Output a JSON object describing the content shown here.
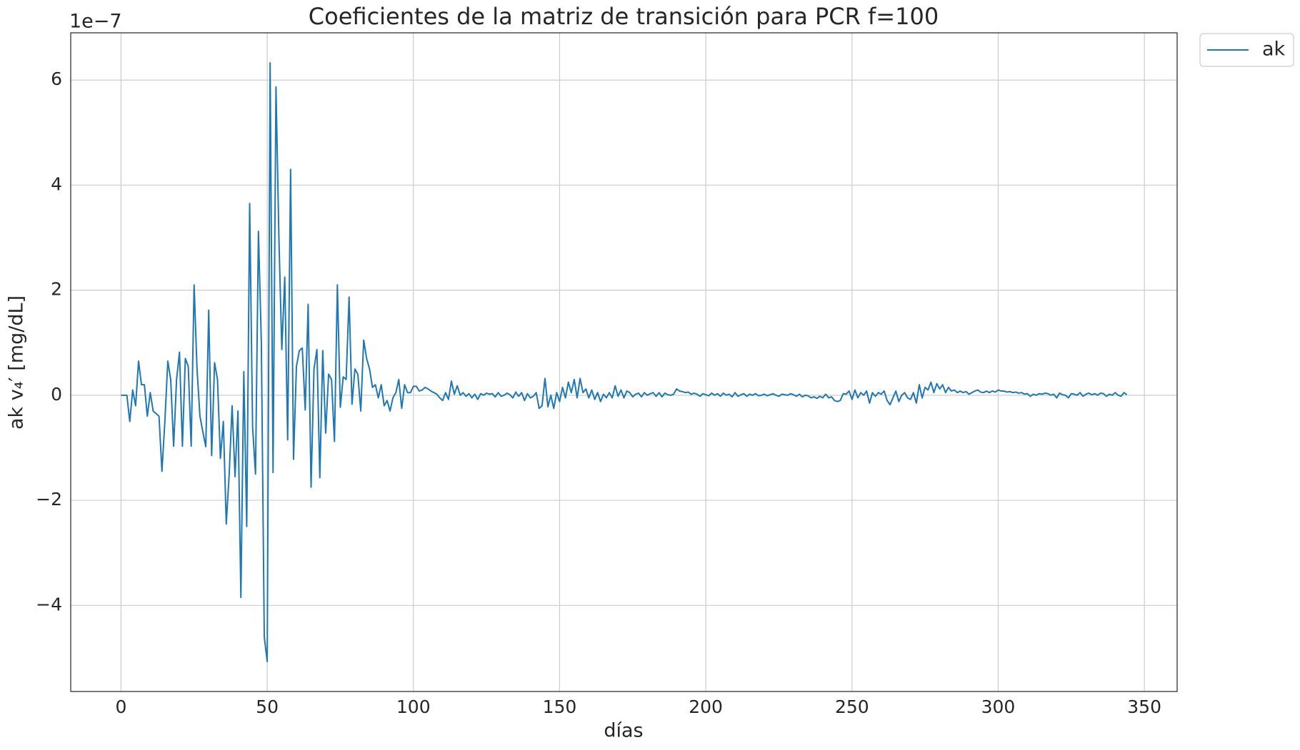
{
  "chart_data": {
    "type": "line",
    "title": "Coeficientes de la matriz de transición para PCR f=100",
    "xlabel": "días",
    "ylabel": "ak v₄′ [mg/dL]",
    "y_offset_label": "1e−7",
    "xlim": [
      -17.2,
      361.2
    ],
    "ylim": [
      -5.64,
      6.9
    ],
    "xticks": [
      0,
      50,
      100,
      150,
      200,
      250,
      300,
      350
    ],
    "yticks": [
      {
        "value": -4,
        "label": "−4"
      },
      {
        "value": -2,
        "label": "−2"
      },
      0,
      2,
      4,
      6
    ],
    "grid": true,
    "legend": "outside-right",
    "x": [
      0,
      1,
      2,
      3,
      4,
      5,
      6,
      7,
      8,
      9,
      10,
      11,
      12,
      13,
      14,
      15,
      16,
      17,
      18,
      19,
      20,
      21,
      22,
      23,
      24,
      25,
      26,
      27,
      28,
      29,
      30,
      31,
      32,
      33,
      34,
      35,
      36,
      37,
      38,
      39,
      40,
      41,
      42,
      43,
      44,
      45,
      46,
      47,
      48,
      49,
      50,
      51,
      52,
      53,
      54,
      55,
      56,
      57,
      58,
      59,
      60,
      61,
      62,
      63,
      64,
      65,
      66,
      67,
      68,
      69,
      70,
      71,
      72,
      73,
      74,
      75,
      76,
      77,
      78,
      79,
      80,
      81,
      82,
      83,
      84,
      85,
      86,
      87,
      88,
      89,
      90,
      91,
      92,
      93,
      94,
      95,
      96,
      97,
      98,
      99,
      100,
      101,
      102,
      103,
      104,
      105,
      106,
      107,
      108,
      109,
      110,
      111,
      112,
      113,
      114,
      115,
      116,
      117,
      118,
      119,
      120,
      121,
      122,
      123,
      124,
      125,
      126,
      127,
      128,
      129,
      130,
      131,
      132,
      133,
      134,
      135,
      136,
      137,
      138,
      139,
      140,
      141,
      142,
      143,
      144,
      145,
      146,
      147,
      148,
      149,
      150,
      151,
      152,
      153,
      154,
      155,
      156,
      157,
      158,
      159,
      160,
      161,
      162,
      163,
      164,
      165,
      166,
      167,
      168,
      169,
      170,
      171,
      172,
      173,
      174,
      175,
      176,
      177,
      178,
      179,
      180,
      181,
      182,
      183,
      184,
      185,
      186,
      187,
      188,
      189,
      190,
      191,
      192,
      193,
      194,
      195,
      196,
      197,
      198,
      199,
      200,
      201,
      202,
      203,
      204,
      205,
      206,
      207,
      208,
      209,
      210,
      211,
      212,
      213,
      214,
      215,
      216,
      217,
      218,
      219,
      220,
      221,
      222,
      223,
      224,
      225,
      226,
      227,
      228,
      229,
      230,
      231,
      232,
      233,
      234,
      235,
      236,
      237,
      238,
      239,
      240,
      241,
      242,
      243,
      244,
      245,
      246,
      247,
      248,
      249,
      250,
      251,
      252,
      253,
      254,
      255,
      256,
      257,
      258,
      259,
      260,
      261,
      262,
      263,
      264,
      265,
      266,
      267,
      268,
      269,
      270,
      271,
      272,
      273,
      274,
      275,
      276,
      277,
      278,
      279,
      280,
      281,
      282,
      283,
      284,
      285,
      286,
      287,
      288,
      289,
      290,
      291,
      292,
      293,
      294,
      295,
      296,
      297,
      298,
      299,
      300,
      301,
      302,
      303,
      304,
      305,
      306,
      307,
      308,
      309,
      310,
      311,
      312,
      313,
      314,
      315,
      316,
      317,
      318,
      319,
      320,
      321,
      322,
      323,
      324,
      325,
      326,
      327,
      328,
      329,
      330,
      331,
      332,
      333,
      334,
      335,
      336,
      337,
      338,
      339,
      340,
      341,
      342,
      343,
      344
    ],
    "series": [
      {
        "name": "ak",
        "color": "#1f77b4",
        "values": [
          0,
          0,
          0,
          -0.5,
          0.1,
          -0.2,
          0.65,
          0.2,
          0.2,
          -0.4,
          0.05,
          -0.3,
          -0.35,
          -0.4,
          -1.45,
          -0.5,
          0.65,
          0.3,
          -0.97,
          0.3,
          0.82,
          -0.97,
          0.7,
          0.55,
          -0.97,
          2.1,
          0.5,
          -0.4,
          -0.7,
          -0.98,
          1.62,
          -1.15,
          0.62,
          0.3,
          -1.2,
          -0.5,
          -2.45,
          -1.5,
          -0.2,
          -1.55,
          -0.3,
          -3.85,
          0.45,
          -2.5,
          3.65,
          -0.6,
          -1.5,
          3.12,
          1.0,
          -4.6,
          -5.07,
          6.33,
          -1.47,
          5.87,
          3.0,
          0.87,
          2.25,
          -0.85,
          4.3,
          -1.22,
          0.55,
          0.85,
          0.9,
          -0.28,
          1.73,
          -1.75,
          0.5,
          0.87,
          -1.57,
          0.85,
          -0.72,
          0.4,
          0.3,
          -0.88,
          2.1,
          -0.23,
          0.35,
          0.3,
          1.87,
          -0.17,
          0.5,
          0.4,
          -0.3,
          1.05,
          0.7,
          0.5,
          0.15,
          0.2,
          -0.05,
          0.2,
          -0.2,
          -0.1,
          -0.3,
          -0.05,
          0.05,
          0.3,
          -0.25,
          0.2,
          0.05,
          0.05,
          0.17,
          0.17,
          0.08,
          0.1,
          0.15,
          0.12,
          0.08,
          0.05,
          0.02,
          -0.05,
          -0.1,
          0.05,
          -0.08,
          0.27,
          0.02,
          0.18,
          0,
          0.05,
          -0.02,
          0.03,
          -0.05,
          0.02,
          -0.08,
          0.03,
          0,
          0.04,
          0.02,
          0.03,
          -0.03,
          0.05,
          -0.02,
          0,
          0.04,
          0.01,
          -0.05,
          0.06,
          -0.02,
          0.05,
          -0.1,
          0.03,
          -0.05,
          -0.02,
          0.05,
          -0.25,
          -0.2,
          0.32,
          -0.22,
          0,
          -0.25,
          0.05,
          -0.12,
          0.15,
          -0.05,
          0.25,
          0.05,
          0.3,
          -0.05,
          0.32,
          0.05,
          0.12,
          -0.05,
          0.1,
          -0.08,
          0.05,
          -0.12,
          0.02,
          -0.05,
          0.05,
          -0.05,
          0.18,
          -0.02,
          0.1,
          -0.05,
          0.08,
          0.05,
          -0.03,
          0.02,
          0.04,
          -0.03,
          0.05,
          0,
          0.03,
          0.05,
          -0.02,
          0.05,
          -0.03,
          0.04,
          0.01,
          0,
          0.02,
          0.12,
          0.08,
          0.07,
          0.05,
          0.06,
          0.02,
          0.04,
          0.02,
          -0.02,
          0.03,
          0.01,
          -0.01,
          0.04,
          0,
          0.03,
          -0.02,
          0.04,
          0,
          0.02,
          -0.03,
          0.05,
          -0.02,
          0.01,
          0.03,
          -0.02,
          0.02,
          0,
          0.03,
          -0.01,
          0,
          0.02,
          -0.01,
          0.01,
          0.03,
          0,
          -0.02,
          0.02,
          0.01,
          0,
          0.03,
          0.01,
          -0.02,
          0.02,
          -0.03,
          0,
          -0.01,
          -0.05,
          -0.03,
          -0.06,
          -0.02,
          -0.05,
          0.02,
          -0.05,
          -0.03,
          -0.1,
          -0.12,
          -0.1,
          0.03,
          0.02,
          0.08,
          -0.08,
          0.1,
          -0.05,
          0.05,
          0,
          0.08,
          -0.15,
          0.05,
          -0.02,
          0.05,
          0.02,
          0.08,
          -0.1,
          -0.18,
          -0.05,
          0.08,
          -0.12,
          0,
          0.05,
          -0.05,
          -0.08,
          0.05,
          -0.15,
          0.2,
          -0.05,
          0.15,
          0.1,
          0.25,
          0.05,
          0.22,
          0.12,
          0.2,
          0.05,
          0.15,
          0.08,
          0.1,
          0.05,
          0.08,
          0.05,
          0.07,
          0.02,
          0.05,
          0.08,
          0.1,
          0.06,
          0.05,
          0.08,
          0.05,
          0.08,
          0.06,
          0.1,
          0.08,
          0.08,
          0.06,
          0.07,
          0.05,
          0.06,
          0.04,
          0.05,
          0.02,
          0.03,
          -0.02,
          0.02,
          0,
          0.03,
          0.02,
          0.04,
          0.03,
          0,
          0.02,
          -0.05,
          0.04,
          0.01,
          0,
          -0.05,
          0.03,
          0.02,
          0,
          0.05,
          -0.02,
          0.02,
          0.04,
          0.01,
          0.03,
          0,
          0.04,
          0.03,
          -0.02,
          0.02,
          0,
          0.05,
          0,
          -0.02,
          0.05,
          0.01
        ]
      }
    ]
  }
}
